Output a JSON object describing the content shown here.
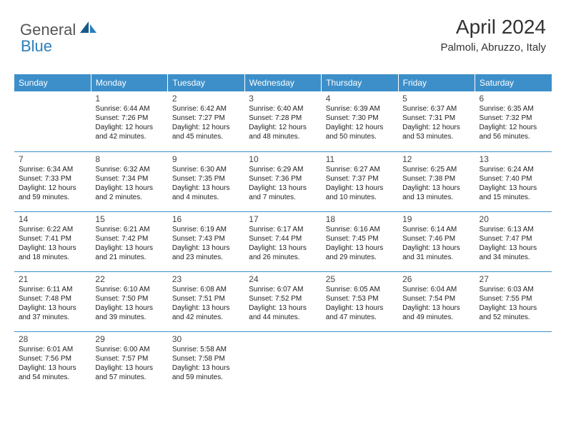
{
  "logo": {
    "text1": "General",
    "text2": "Blue"
  },
  "title": "April 2024",
  "location": "Palmoli, Abruzzo, Italy",
  "colors": {
    "header_bg": "#3d8fc9",
    "header_text": "#ffffff",
    "border": "#3d8fc9",
    "logo_gray": "#555555",
    "logo_blue": "#2a7fba",
    "text": "#222222"
  },
  "weekdays": [
    "Sunday",
    "Monday",
    "Tuesday",
    "Wednesday",
    "Thursday",
    "Friday",
    "Saturday"
  ],
  "weeks": [
    [
      null,
      {
        "d": "1",
        "sr": "Sunrise: 6:44 AM",
        "ss": "Sunset: 7:26 PM",
        "dl1": "Daylight: 12 hours",
        "dl2": "and 42 minutes."
      },
      {
        "d": "2",
        "sr": "Sunrise: 6:42 AM",
        "ss": "Sunset: 7:27 PM",
        "dl1": "Daylight: 12 hours",
        "dl2": "and 45 minutes."
      },
      {
        "d": "3",
        "sr": "Sunrise: 6:40 AM",
        "ss": "Sunset: 7:28 PM",
        "dl1": "Daylight: 12 hours",
        "dl2": "and 48 minutes."
      },
      {
        "d": "4",
        "sr": "Sunrise: 6:39 AM",
        "ss": "Sunset: 7:30 PM",
        "dl1": "Daylight: 12 hours",
        "dl2": "and 50 minutes."
      },
      {
        "d": "5",
        "sr": "Sunrise: 6:37 AM",
        "ss": "Sunset: 7:31 PM",
        "dl1": "Daylight: 12 hours",
        "dl2": "and 53 minutes."
      },
      {
        "d": "6",
        "sr": "Sunrise: 6:35 AM",
        "ss": "Sunset: 7:32 PM",
        "dl1": "Daylight: 12 hours",
        "dl2": "and 56 minutes."
      }
    ],
    [
      {
        "d": "7",
        "sr": "Sunrise: 6:34 AM",
        "ss": "Sunset: 7:33 PM",
        "dl1": "Daylight: 12 hours",
        "dl2": "and 59 minutes."
      },
      {
        "d": "8",
        "sr": "Sunrise: 6:32 AM",
        "ss": "Sunset: 7:34 PM",
        "dl1": "Daylight: 13 hours",
        "dl2": "and 2 minutes."
      },
      {
        "d": "9",
        "sr": "Sunrise: 6:30 AM",
        "ss": "Sunset: 7:35 PM",
        "dl1": "Daylight: 13 hours",
        "dl2": "and 4 minutes."
      },
      {
        "d": "10",
        "sr": "Sunrise: 6:29 AM",
        "ss": "Sunset: 7:36 PM",
        "dl1": "Daylight: 13 hours",
        "dl2": "and 7 minutes."
      },
      {
        "d": "11",
        "sr": "Sunrise: 6:27 AM",
        "ss": "Sunset: 7:37 PM",
        "dl1": "Daylight: 13 hours",
        "dl2": "and 10 minutes."
      },
      {
        "d": "12",
        "sr": "Sunrise: 6:25 AM",
        "ss": "Sunset: 7:38 PM",
        "dl1": "Daylight: 13 hours",
        "dl2": "and 13 minutes."
      },
      {
        "d": "13",
        "sr": "Sunrise: 6:24 AM",
        "ss": "Sunset: 7:40 PM",
        "dl1": "Daylight: 13 hours",
        "dl2": "and 15 minutes."
      }
    ],
    [
      {
        "d": "14",
        "sr": "Sunrise: 6:22 AM",
        "ss": "Sunset: 7:41 PM",
        "dl1": "Daylight: 13 hours",
        "dl2": "and 18 minutes."
      },
      {
        "d": "15",
        "sr": "Sunrise: 6:21 AM",
        "ss": "Sunset: 7:42 PM",
        "dl1": "Daylight: 13 hours",
        "dl2": "and 21 minutes."
      },
      {
        "d": "16",
        "sr": "Sunrise: 6:19 AM",
        "ss": "Sunset: 7:43 PM",
        "dl1": "Daylight: 13 hours",
        "dl2": "and 23 minutes."
      },
      {
        "d": "17",
        "sr": "Sunrise: 6:17 AM",
        "ss": "Sunset: 7:44 PM",
        "dl1": "Daylight: 13 hours",
        "dl2": "and 26 minutes."
      },
      {
        "d": "18",
        "sr": "Sunrise: 6:16 AM",
        "ss": "Sunset: 7:45 PM",
        "dl1": "Daylight: 13 hours",
        "dl2": "and 29 minutes."
      },
      {
        "d": "19",
        "sr": "Sunrise: 6:14 AM",
        "ss": "Sunset: 7:46 PM",
        "dl1": "Daylight: 13 hours",
        "dl2": "and 31 minutes."
      },
      {
        "d": "20",
        "sr": "Sunrise: 6:13 AM",
        "ss": "Sunset: 7:47 PM",
        "dl1": "Daylight: 13 hours",
        "dl2": "and 34 minutes."
      }
    ],
    [
      {
        "d": "21",
        "sr": "Sunrise: 6:11 AM",
        "ss": "Sunset: 7:48 PM",
        "dl1": "Daylight: 13 hours",
        "dl2": "and 37 minutes."
      },
      {
        "d": "22",
        "sr": "Sunrise: 6:10 AM",
        "ss": "Sunset: 7:50 PM",
        "dl1": "Daylight: 13 hours",
        "dl2": "and 39 minutes."
      },
      {
        "d": "23",
        "sr": "Sunrise: 6:08 AM",
        "ss": "Sunset: 7:51 PM",
        "dl1": "Daylight: 13 hours",
        "dl2": "and 42 minutes."
      },
      {
        "d": "24",
        "sr": "Sunrise: 6:07 AM",
        "ss": "Sunset: 7:52 PM",
        "dl1": "Daylight: 13 hours",
        "dl2": "and 44 minutes."
      },
      {
        "d": "25",
        "sr": "Sunrise: 6:05 AM",
        "ss": "Sunset: 7:53 PM",
        "dl1": "Daylight: 13 hours",
        "dl2": "and 47 minutes."
      },
      {
        "d": "26",
        "sr": "Sunrise: 6:04 AM",
        "ss": "Sunset: 7:54 PM",
        "dl1": "Daylight: 13 hours",
        "dl2": "and 49 minutes."
      },
      {
        "d": "27",
        "sr": "Sunrise: 6:03 AM",
        "ss": "Sunset: 7:55 PM",
        "dl1": "Daylight: 13 hours",
        "dl2": "and 52 minutes."
      }
    ],
    [
      {
        "d": "28",
        "sr": "Sunrise: 6:01 AM",
        "ss": "Sunset: 7:56 PM",
        "dl1": "Daylight: 13 hours",
        "dl2": "and 54 minutes."
      },
      {
        "d": "29",
        "sr": "Sunrise: 6:00 AM",
        "ss": "Sunset: 7:57 PM",
        "dl1": "Daylight: 13 hours",
        "dl2": "and 57 minutes."
      },
      {
        "d": "30",
        "sr": "Sunrise: 5:58 AM",
        "ss": "Sunset: 7:58 PM",
        "dl1": "Daylight: 13 hours",
        "dl2": "and 59 minutes."
      },
      null,
      null,
      null,
      null
    ]
  ]
}
